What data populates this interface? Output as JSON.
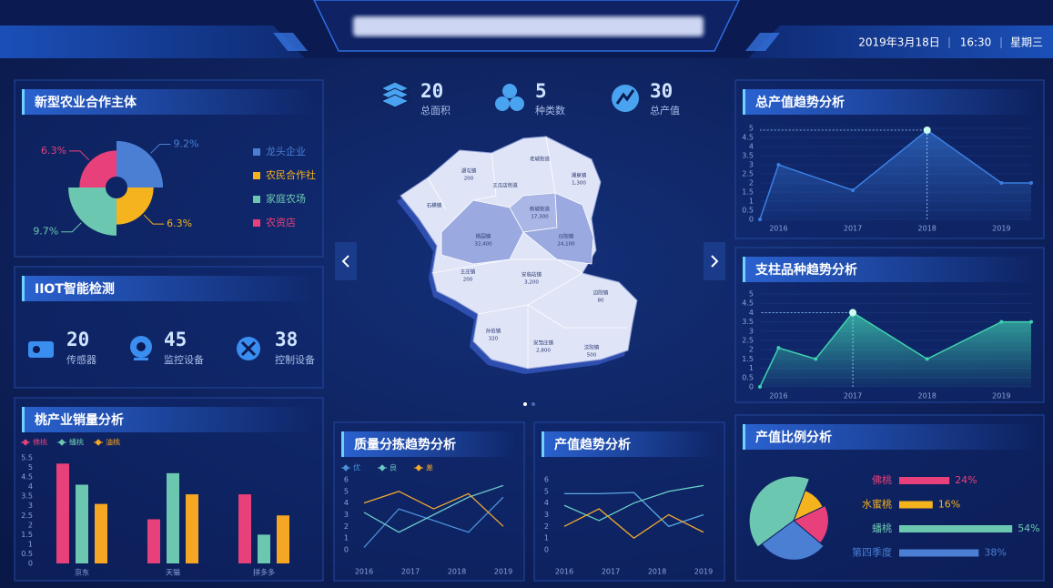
{
  "header": {
    "date": "2019年3月18日",
    "time": "16:30",
    "weekday": "星期三"
  },
  "center_stats": [
    {
      "value": 20,
      "label": "总面积"
    },
    {
      "value": 5,
      "label": "种类数"
    },
    {
      "value": 30,
      "label": "总产值"
    }
  ],
  "iiot": {
    "title": "IIOT智能检测",
    "stats": [
      {
        "value": 20,
        "label": "传感器"
      },
      {
        "value": 45,
        "label": "监控设备"
      },
      {
        "value": 38,
        "label": "控制设备"
      }
    ]
  },
  "map": {
    "regions": [
      {
        "name": "湖屯镇",
        "value": "200"
      },
      {
        "name": "老城街道"
      },
      {
        "name": "王瓜店街道"
      },
      {
        "name": "潮泉镇",
        "value": "1,300"
      },
      {
        "name": "石横镇"
      },
      {
        "name": "新城街道",
        "value": "17,300"
      },
      {
        "name": "桃园镇",
        "value": "32,400"
      },
      {
        "name": "仪阳镇",
        "value": "24,100"
      },
      {
        "name": "王庄镇",
        "value": "200"
      },
      {
        "name": "安临站镇",
        "value": "3,200"
      },
      {
        "name": "边院镇",
        "value": "80"
      },
      {
        "name": "孙伯镇",
        "value": "320"
      },
      {
        "name": "安驾庄镇",
        "value": "2,800"
      },
      {
        "name": "汶阳镇",
        "value": "500"
      }
    ]
  },
  "chart_data": [
    {
      "type": "rose",
      "title": "新型农业合作主体",
      "categories": [
        "龙头企业",
        "农民合作社",
        "家庭农场",
        "农资店"
      ],
      "values": [
        9.2,
        6.3,
        9.7,
        6.3
      ],
      "value_labels": [
        "9.2%",
        "6.3%",
        "9.7%",
        "6.3%"
      ],
      "colors": [
        "#4a7fd4",
        "#f5b31d",
        "#6cc7b0",
        "#e8407a"
      ],
      "legend": "right"
    },
    {
      "type": "bar",
      "title": "桃产业销量分析",
      "categories": [
        "京东",
        "天猫",
        "拼多多"
      ],
      "series": [
        {
          "name": "佛桃",
          "color": "#e8407a",
          "values": [
            5.2,
            2.3,
            3.6
          ]
        },
        {
          "name": "蟠桃",
          "color": "#6cc7b0",
          "values": [
            4.1,
            4.7,
            1.5
          ]
        },
        {
          "name": "油桃",
          "color": "#f5a623",
          "values": [
            3.1,
            3.6,
            2.5
          ]
        }
      ],
      "ylim": [
        0,
        5.5
      ],
      "yticks": [
        0,
        0.5,
        1,
        1.5,
        2,
        2.5,
        3,
        3.5,
        4,
        4.5,
        5,
        5.5
      ],
      "grid": false,
      "legend": "top-left"
    },
    {
      "type": "line",
      "title": "质量分拣趋势分析",
      "x": [
        2016,
        2016.75,
        2017.5,
        2018.25,
        2019
      ],
      "series": [
        {
          "name": "优",
          "color": "#4a90d9",
          "values": [
            0.2,
            3.5,
            2.5,
            1.5,
            4.5
          ]
        },
        {
          "name": "良",
          "color": "#6cc7c8",
          "values": [
            3.2,
            1.5,
            3,
            4.5,
            5.5
          ]
        },
        {
          "name": "差",
          "color": "#f0a832",
          "values": [
            4,
            5,
            3.5,
            4.8,
            2
          ]
        }
      ],
      "xlim": [
        2016,
        2019
      ],
      "xticks": [
        2016,
        2017,
        2018,
        2019
      ],
      "ylim": [
        0,
        6
      ],
      "yticks": [
        0,
        1,
        2,
        3,
        4,
        5,
        6
      ],
      "grid": false,
      "legend": "top-left"
    },
    {
      "type": "line",
      "title": "产值趋势分析",
      "x": [
        2016,
        2016.75,
        2017.5,
        2018.25,
        2019
      ],
      "series": [
        {
          "color": "#5aa9e6",
          "values": [
            4.8,
            4.8,
            4.9,
            2,
            3
          ]
        },
        {
          "color": "#6cd0c8",
          "values": [
            3.8,
            2.5,
            4,
            5,
            5.5
          ]
        },
        {
          "color": "#f0a832",
          "values": [
            2,
            3.5,
            1,
            3,
            1.5
          ]
        }
      ],
      "xlim": [
        2016,
        2019
      ],
      "xticks": [
        2016,
        2017,
        2018,
        2019
      ],
      "ylim": [
        0,
        6
      ],
      "yticks": [
        0,
        1,
        2,
        3,
        4,
        5,
        6
      ],
      "grid": false
    },
    {
      "type": "area",
      "title": "总产值趋势分析",
      "x": [
        2015.75,
        2016,
        2017,
        2018,
        2019,
        2019.4
      ],
      "values": [
        0,
        3,
        1.6,
        4.9,
        2,
        2
      ],
      "color": "#3b7fe0",
      "xlim": [
        2015.75,
        2019.4
      ],
      "xticks": [
        2016,
        2017,
        2018,
        2019
      ],
      "ylim": [
        0,
        5
      ],
      "yticks": [
        0,
        0.5,
        1,
        1.5,
        2,
        2.5,
        3,
        3.5,
        4,
        4.5,
        5
      ],
      "grid": true
    },
    {
      "type": "area",
      "title": "支柱品种趋势分析",
      "x": [
        2015.75,
        2016,
        2016.5,
        2017,
        2018,
        2019,
        2019.4
      ],
      "values": [
        0,
        2.1,
        1.5,
        4,
        1.5,
        3.5,
        3.5
      ],
      "color": "#3fd1b0",
      "xlim": [
        2015.75,
        2019.4
      ],
      "xticks": [
        2016,
        2017,
        2018,
        2019
      ],
      "ylim": [
        0,
        5
      ],
      "yticks": [
        0,
        0.5,
        1,
        1.5,
        2,
        2.5,
        3,
        3.5,
        4,
        4.5,
        5
      ],
      "grid": true
    },
    {
      "type": "pie",
      "title": "产值比例分析",
      "categories": [
        "佛桃",
        "水蜜桃",
        "蟠桃",
        "第四季度"
      ],
      "values": [
        24,
        16,
        54,
        38
      ],
      "value_labels": [
        "24%",
        "16%",
        "54%",
        "38%"
      ],
      "colors": [
        "#e8407a",
        "#f5b31d",
        "#6cc7b0",
        "#4a7fd4"
      ]
    }
  ]
}
